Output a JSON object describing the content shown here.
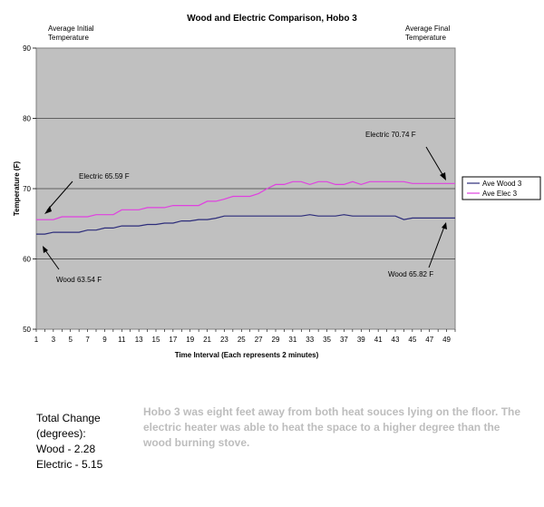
{
  "chart_data": {
    "type": "line",
    "title": "Wood and Electric Comparison, Hobo 3",
    "xlabel": "Time Interval (Each represents 2 minutes)",
    "ylabel": "Temperature (F)",
    "ylim": [
      50,
      90
    ],
    "yticks": [
      "50",
      "60",
      "70",
      "80",
      "90"
    ],
    "xticks": [
      "1",
      "3",
      "5",
      "7",
      "9",
      "11",
      "13",
      "15",
      "17",
      "19",
      "21",
      "23",
      "25",
      "27",
      "29",
      "31",
      "33",
      "35",
      "37",
      "39",
      "41",
      "43",
      "45",
      "47",
      "49"
    ],
    "x": [
      1,
      2,
      3,
      4,
      5,
      6,
      7,
      8,
      9,
      10,
      11,
      12,
      13,
      14,
      15,
      16,
      17,
      18,
      19,
      20,
      21,
      22,
      23,
      24,
      25,
      26,
      27,
      28,
      29,
      30,
      31,
      32,
      33,
      34,
      35,
      36,
      37,
      38,
      39,
      40,
      41,
      42,
      43,
      44,
      45,
      46,
      47,
      48,
      49,
      50
    ],
    "grid": "horizontal",
    "legend_position": "right",
    "series": [
      {
        "name": "Ave Wood 3",
        "color": "#2c2c7a",
        "values": [
          63.54,
          63.54,
          63.8,
          63.8,
          63.8,
          63.8,
          64.1,
          64.1,
          64.4,
          64.4,
          64.7,
          64.7,
          64.7,
          64.9,
          64.9,
          65.1,
          65.1,
          65.4,
          65.4,
          65.6,
          65.6,
          65.8,
          66.1,
          66.1,
          66.1,
          66.1,
          66.1,
          66.1,
          66.1,
          66.1,
          66.1,
          66.1,
          66.3,
          66.1,
          66.1,
          66.1,
          66.3,
          66.1,
          66.1,
          66.1,
          66.1,
          66.1,
          66.1,
          65.6,
          65.82,
          65.82,
          65.82,
          65.82,
          65.82,
          65.82
        ]
      },
      {
        "name": "Ave Elec 3",
        "color": "#e040e0",
        "values": [
          65.59,
          65.59,
          65.59,
          66.0,
          66.0,
          66.0,
          66.0,
          66.3,
          66.3,
          66.3,
          67.0,
          67.0,
          67.0,
          67.3,
          67.3,
          67.3,
          67.6,
          67.6,
          67.6,
          67.6,
          68.2,
          68.2,
          68.5,
          68.9,
          68.9,
          68.9,
          69.3,
          70.0,
          70.6,
          70.6,
          71.0,
          71.0,
          70.6,
          71.0,
          71.0,
          70.6,
          70.6,
          71.0,
          70.6,
          71.0,
          71.0,
          71.0,
          71.0,
          71.0,
          70.74,
          70.74,
          70.74,
          70.74,
          70.74,
          70.74
        ]
      }
    ],
    "annotations": {
      "initial_header": [
        "Average Initial",
        "Temperature"
      ],
      "final_header": [
        "Average Final",
        "Temperature"
      ],
      "elec_initial": "Electric 65.59 F",
      "elec_final": "Electric 70.74 F",
      "wood_initial": "Wood 63.54 F",
      "wood_final": "Wood 65.82 F"
    },
    "colors": {
      "plot_background": "#c0c0c0",
      "gridline": "#000000",
      "arrow": "#000000"
    }
  },
  "summary": {
    "heading_line1": "Total Change",
    "heading_line2": "(degrees):",
    "wood": "Wood - 2.28",
    "electric": "Electric - 5.15"
  },
  "note": "Hobo 3 was eight feet away from both heat souces lying on the floor. The electric heater was able to heat the space to a higher degree than the wood burning stove."
}
